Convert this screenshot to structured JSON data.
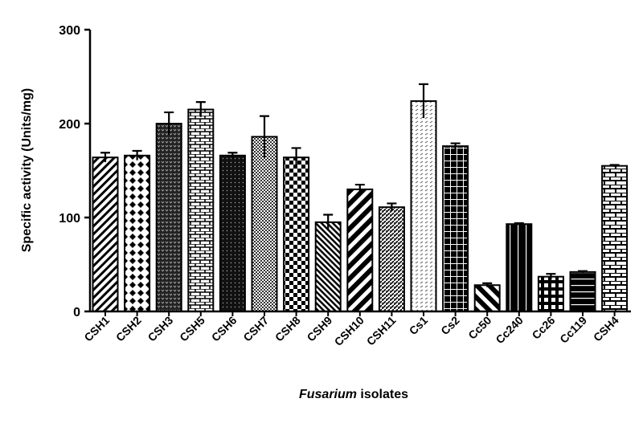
{
  "chart_data": {
    "type": "bar",
    "title": "",
    "xlabel_italic": "Fusarium",
    "xlabel_rest": " isolates",
    "ylabel": "Specific activity (Units/mg)",
    "ylim": [
      0,
      300
    ],
    "yticks": [
      "0",
      "100",
      "200",
      "300"
    ],
    "categories": [
      "CSH1",
      "CSH2",
      "CSH3",
      "CSH5",
      "CSH6",
      "CSH7",
      "CSH8",
      "CSH9",
      "CSH10",
      "CSH11",
      "Cs1",
      "Cs2",
      "Cc50",
      "Cc240",
      "Cc26",
      "Cc119",
      "CSH4"
    ],
    "values": [
      164,
      166,
      200,
      215,
      166,
      186,
      164,
      95,
      130,
      111,
      224,
      176,
      28,
      93,
      37,
      42,
      155
    ],
    "errors": [
      5,
      5,
      12,
      8,
      3,
      22,
      10,
      8,
      5,
      4,
      18,
      3,
      2,
      1,
      3,
      1,
      1
    ],
    "patterns": [
      "diag-right",
      "diamond",
      "dense-dark",
      "brick",
      "dots-dark",
      "fine-check",
      "checker",
      "diag-fine",
      "diag-bold",
      "zigzag",
      "dash-light",
      "grid-dark",
      "diag-left",
      "vertical",
      "grid-white",
      "horizontal",
      "brick-large"
    ]
  }
}
